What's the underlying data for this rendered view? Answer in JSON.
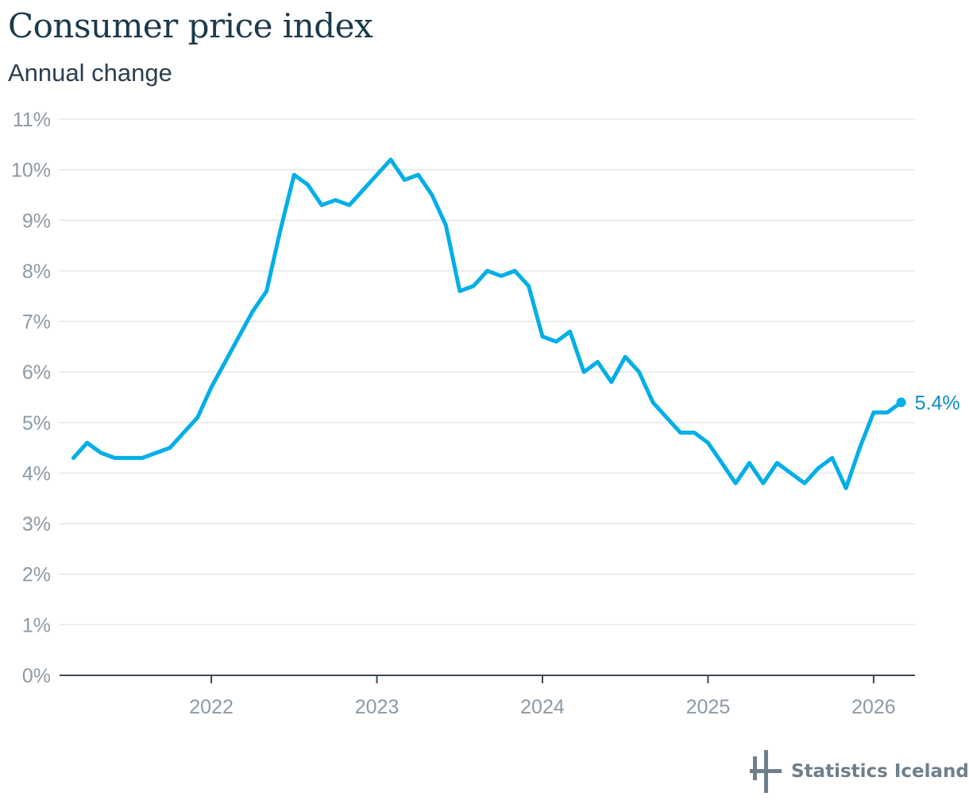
{
  "header": {
    "title": "Consumer price index",
    "subtitle": "Annual change"
  },
  "footer": {
    "logo_text": "Statistics Iceland",
    "logo_icon": "statistics-iceland-mark"
  },
  "colors": {
    "series": "#00aee8",
    "end_label": "#0a8fc4",
    "grid": "#e3e6e9",
    "axis": "#3b4a55",
    "tick_text": "#8c9aa5"
  },
  "chart_data": {
    "type": "line",
    "title": "Consumer price index",
    "subtitle": "Annual change",
    "xlabel": "",
    "ylabel": "",
    "ylim": [
      0,
      11
    ],
    "xlim": [
      "2021-02",
      "2026-04"
    ],
    "grid": true,
    "y_ticks": [
      {
        "value": 0,
        "label": "0%"
      },
      {
        "value": 1,
        "label": "1%"
      },
      {
        "value": 2,
        "label": "2%"
      },
      {
        "value": 3,
        "label": "3%"
      },
      {
        "value": 4,
        "label": "4%"
      },
      {
        "value": 5,
        "label": "5%"
      },
      {
        "value": 6,
        "label": "6%"
      },
      {
        "value": 7,
        "label": "7%"
      },
      {
        "value": 8,
        "label": "8%"
      },
      {
        "value": 9,
        "label": "9%"
      },
      {
        "value": 10,
        "label": "10%"
      },
      {
        "value": 11,
        "label": "11%"
      }
    ],
    "x_ticks": [
      {
        "value": "2022-01",
        "label": "2022"
      },
      {
        "value": "2023-01",
        "label": "2023"
      },
      {
        "value": "2024-01",
        "label": "2024"
      },
      {
        "value": "2025-01",
        "label": "2025"
      },
      {
        "value": "2026-01",
        "label": "2026"
      }
    ],
    "series": [
      {
        "x": [
          "2021-03",
          "2021-04",
          "2021-05",
          "2021-06",
          "2021-07",
          "2021-08",
          "2021-09",
          "2021-10",
          "2021-11",
          "2021-12",
          "2022-01",
          "2022-02",
          "2022-03",
          "2022-04",
          "2022-05",
          "2022-06",
          "2022-07",
          "2022-08",
          "2022-09",
          "2022-10",
          "2022-11",
          "2022-12",
          "2023-01",
          "2023-02",
          "2023-03",
          "2023-04",
          "2023-05",
          "2023-06",
          "2023-07",
          "2023-08",
          "2023-09",
          "2023-10",
          "2023-11",
          "2023-12",
          "2024-01",
          "2024-02",
          "2024-03",
          "2024-04",
          "2024-05",
          "2024-06",
          "2024-07",
          "2024-08",
          "2024-09",
          "2024-10",
          "2024-11",
          "2024-12",
          "2025-01",
          "2025-02",
          "2025-03",
          "2025-04",
          "2025-05",
          "2025-06",
          "2025-07",
          "2025-08",
          "2025-09",
          "2025-10",
          "2025-11",
          "2025-12",
          "2026-01",
          "2026-02",
          "2026-03"
        ],
        "values": [
          4.3,
          4.6,
          4.4,
          4.3,
          4.3,
          4.3,
          4.4,
          4.5,
          4.8,
          5.1,
          5.7,
          6.2,
          6.7,
          7.2,
          7.6,
          8.8,
          9.9,
          9.7,
          9.3,
          9.4,
          9.3,
          9.6,
          9.9,
          10.2,
          9.8,
          9.9,
          9.5,
          8.9,
          7.6,
          7.7,
          8.0,
          7.9,
          8.0,
          7.7,
          6.7,
          6.6,
          6.8,
          6.0,
          6.2,
          5.8,
          6.3,
          6.0,
          5.4,
          5.1,
          4.8,
          4.8,
          4.6,
          4.2,
          3.8,
          4.2,
          3.8,
          4.2,
          4.0,
          3.8,
          4.1,
          4.3,
          3.7,
          4.5,
          5.2,
          5.2,
          5.4
        ],
        "end_label": "5.4%"
      }
    ]
  }
}
